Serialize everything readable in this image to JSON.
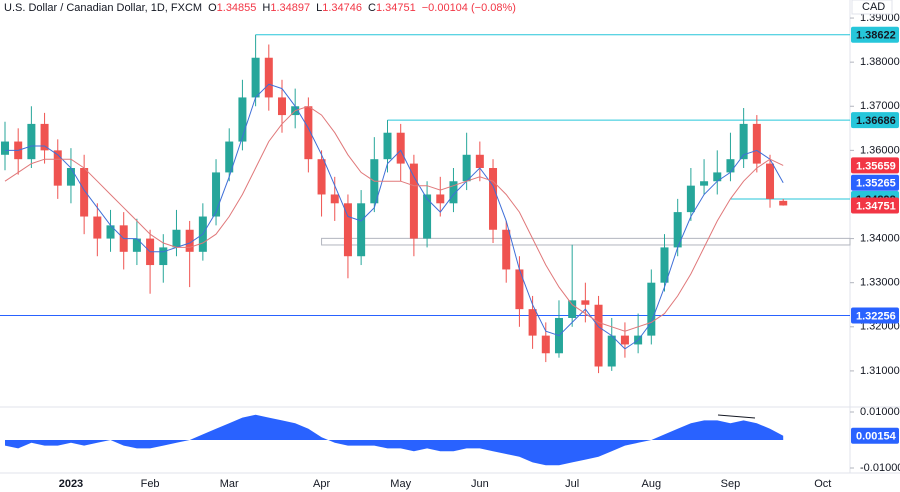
{
  "header": {
    "symbol": "U.S. Dollar / Canadian Dollar, 1D, FXCM",
    "o_label": "O",
    "h_label": "H",
    "l_label": "L",
    "c_label": "C",
    "change": "−0.00104 (−0.08%)",
    "currency": "CAD"
  },
  "chart_data": [
    {
      "type": "candlestick",
      "categories": [
        null,
        null,
        null,
        null,
        null,
        "2023",
        null,
        null,
        null,
        null,
        null,
        "Feb",
        null,
        null,
        null,
        null,
        null,
        "Mar",
        null,
        null,
        null,
        null,
        null,
        null,
        "Apr",
        null,
        null,
        null,
        null,
        null,
        "May",
        null,
        null,
        null,
        null,
        null,
        "Jun",
        null,
        null,
        null,
        null,
        null,
        null,
        "Jul",
        null,
        null,
        null,
        null,
        null,
        "Aug",
        null,
        null,
        null,
        null,
        null,
        "Sep",
        null,
        null,
        null,
        null,
        null,
        null,
        "Oct"
      ],
      "open": [
        1.359,
        1.362,
        1.358,
        1.366,
        1.36,
        1.352,
        1.356,
        1.345,
        1.34,
        1.343,
        1.337,
        1.34,
        1.334,
        1.338,
        1.342,
        1.337,
        1.345,
        1.355,
        1.362,
        1.372,
        1.381,
        1.372,
        1.368,
        1.37,
        1.358,
        1.35,
        1.348,
        1.336,
        1.348,
        1.358,
        1.364,
        1.357,
        1.34,
        1.35,
        1.348,
        1.353,
        1.359,
        1.356,
        1.342,
        1.333,
        1.324,
        1.318,
        1.314,
        1.322,
        1.326,
        1.325,
        1.311,
        1.318,
        1.316,
        1.318,
        1.33,
        1.338,
        1.346,
        1.352,
        1.353,
        1.355,
        1.358,
        1.366,
        1.357,
        1.34855,
        null,
        null,
        null
      ],
      "high": [
        1.3665,
        1.365,
        1.37,
        1.3685,
        1.3625,
        1.3605,
        1.359,
        1.348,
        1.3465,
        1.346,
        1.3445,
        1.342,
        1.341,
        1.3465,
        1.344,
        1.348,
        1.358,
        1.365,
        1.376,
        1.38622,
        1.384,
        1.376,
        1.374,
        1.372,
        1.36,
        1.354,
        1.35,
        1.351,
        1.363,
        1.36686,
        1.366,
        1.359,
        1.353,
        1.354,
        1.356,
        1.364,
        1.362,
        1.358,
        1.344,
        1.336,
        1.327,
        1.321,
        1.326,
        1.3386,
        1.33,
        1.327,
        1.322,
        1.321,
        1.323,
        1.333,
        1.341,
        1.349,
        1.356,
        1.358,
        1.36,
        1.364,
        1.3696,
        1.368,
        1.359,
        1.34897,
        null,
        null,
        null
      ],
      "low": [
        1.3555,
        1.3545,
        1.356,
        1.357,
        1.349,
        1.348,
        1.341,
        1.336,
        1.337,
        1.333,
        1.334,
        1.3275,
        1.33,
        1.336,
        1.329,
        1.335,
        1.343,
        1.353,
        1.36,
        1.37,
        1.369,
        1.364,
        1.365,
        1.355,
        1.345,
        1.344,
        1.331,
        1.334,
        1.346,
        1.355,
        1.353,
        1.336,
        1.338,
        1.345,
        1.346,
        1.351,
        1.353,
        1.339,
        1.33,
        1.32,
        1.315,
        1.312,
        1.313,
        1.32,
        1.321,
        1.3095,
        1.31,
        1.313,
        1.314,
        1.316,
        1.328,
        1.336,
        1.344,
        1.35,
        1.35,
        1.353,
        1.356,
        1.355,
        1.347,
        1.34746,
        null,
        null,
        null
      ],
      "close": [
        1.362,
        1.358,
        1.366,
        1.36,
        1.352,
        1.356,
        1.345,
        1.34,
        1.343,
        1.337,
        1.34,
        1.334,
        1.338,
        1.342,
        1.337,
        1.345,
        1.355,
        1.362,
        1.372,
        1.381,
        1.372,
        1.368,
        1.37,
        1.358,
        1.35,
        1.348,
        1.336,
        1.348,
        1.358,
        1.364,
        1.357,
        1.34,
        1.35,
        1.348,
        1.353,
        1.359,
        1.356,
        1.342,
        1.333,
        1.324,
        1.318,
        1.314,
        1.322,
        1.326,
        1.325,
        1.311,
        1.318,
        1.316,
        1.318,
        1.33,
        1.338,
        1.346,
        1.352,
        1.353,
        1.355,
        1.358,
        1.366,
        1.357,
        1.349,
        1.34751,
        null,
        null,
        null
      ],
      "up_color": "#26a69a",
      "down_color": "#ef5350",
      "overlays": [
        {
          "color": "#3f6fd8",
          "values": [
            1.36,
            1.36,
            1.361,
            1.361,
            1.359,
            1.356,
            1.351,
            1.347,
            1.343,
            1.34,
            1.34,
            1.337,
            1.337,
            1.338,
            1.339,
            1.341,
            1.346,
            1.354,
            1.363,
            1.372,
            1.375,
            1.374,
            1.37,
            1.365,
            1.359,
            1.352,
            1.345,
            1.344,
            1.347,
            1.357,
            1.36,
            1.354,
            1.349,
            1.346,
            1.35,
            1.353,
            1.356,
            1.352,
            1.344,
            1.333,
            1.325,
            1.319,
            1.318,
            1.321,
            1.324,
            1.32,
            1.318,
            1.315,
            1.317,
            1.321,
            1.329,
            1.338,
            1.345,
            1.35,
            1.353,
            1.355,
            1.359,
            1.36,
            1.358,
            1.35265,
            null,
            null,
            null
          ],
          "label_color": "#2962ff"
        },
        {
          "color": "#e0787a",
          "values": [
            1.353,
            1.355,
            1.357,
            1.358,
            1.358,
            1.358,
            1.356,
            1.353,
            1.35,
            1.347,
            1.344,
            1.341,
            1.339,
            1.338,
            1.338,
            1.339,
            1.341,
            1.345,
            1.35,
            1.356,
            1.362,
            1.366,
            1.369,
            1.37,
            1.368,
            1.364,
            1.359,
            1.355,
            1.353,
            1.353,
            1.353,
            1.352,
            1.352,
            1.351,
            1.352,
            1.353,
            1.354,
            1.353,
            1.35,
            1.346,
            1.34,
            1.334,
            1.329,
            1.325,
            1.323,
            1.321,
            1.32,
            1.319,
            1.32,
            1.321,
            1.323,
            1.327,
            1.332,
            1.338,
            1.344,
            1.349,
            1.353,
            1.356,
            1.358,
            1.35659,
            null,
            null,
            null
          ],
          "label_color": "#f23645"
        }
      ],
      "levels": [
        {
          "value": 1.38622,
          "color": "#26c6da",
          "text_color": "#131722"
        },
        {
          "value": 1.36686,
          "color": "#26c6da",
          "text_color": "#131722"
        },
        {
          "value": 1.34898,
          "color": "#26c6da",
          "text_color": "#131722"
        },
        {
          "value": 1.32256,
          "color": "#2962ff",
          "text_color": "#ffffff"
        }
      ],
      "zones": [
        [
          1.33855,
          1.34005
        ]
      ],
      "last_color": "#f23645",
      "ylim": [
        1.30227,
        1.39409
      ],
      "yticks": [
        {
          "value": 1.39,
          "label": "1.39000"
        },
        {
          "value": 1.38,
          "label": "1.38000"
        },
        {
          "value": 1.37,
          "label": "1.37000"
        },
        {
          "value": 1.36,
          "label": "1.36000"
        },
        {
          "value": 1.34,
          "label": "1.34000"
        },
        {
          "value": 1.33,
          "label": "1.33000"
        },
        {
          "value": 1.32,
          "label": "1.32000"
        },
        {
          "value": 1.31,
          "label": "1.31000"
        }
      ],
      "grid": false
    },
    {
      "type": "area",
      "color": "#2962ff",
      "values": [
        -0.002,
        -0.003,
        -0.001,
        -0.002,
        -0.002,
        -0.001,
        -0.002,
        -0.001,
        0.0,
        -0.002,
        -0.003,
        -0.003,
        -0.002,
        -0.001,
        0.0,
        0.002,
        0.004,
        0.006,
        0.008,
        0.009,
        0.008,
        0.007,
        0.006,
        0.004,
        0.001,
        -0.001,
        -0.002,
        -0.002,
        -0.002,
        -0.003,
        -0.003,
        -0.004,
        -0.003,
        -0.004,
        -0.004,
        -0.003,
        -0.003,
        -0.004,
        -0.005,
        -0.006,
        -0.008,
        -0.009,
        -0.009,
        -0.008,
        -0.007,
        -0.006,
        -0.004,
        -0.002,
        -0.001,
        0.0,
        0.002,
        0.004,
        0.006,
        0.007,
        0.007,
        0.006,
        0.007,
        0.006,
        0.004,
        0.00154,
        null,
        null,
        null
      ],
      "ylim": [
        -0.01143,
        0.01143
      ],
      "yticks": [
        {
          "value": 0.01,
          "label": "0.01000"
        },
        {
          "value": -0.01,
          "label": "-0.01000"
        }
      ]
    }
  ]
}
